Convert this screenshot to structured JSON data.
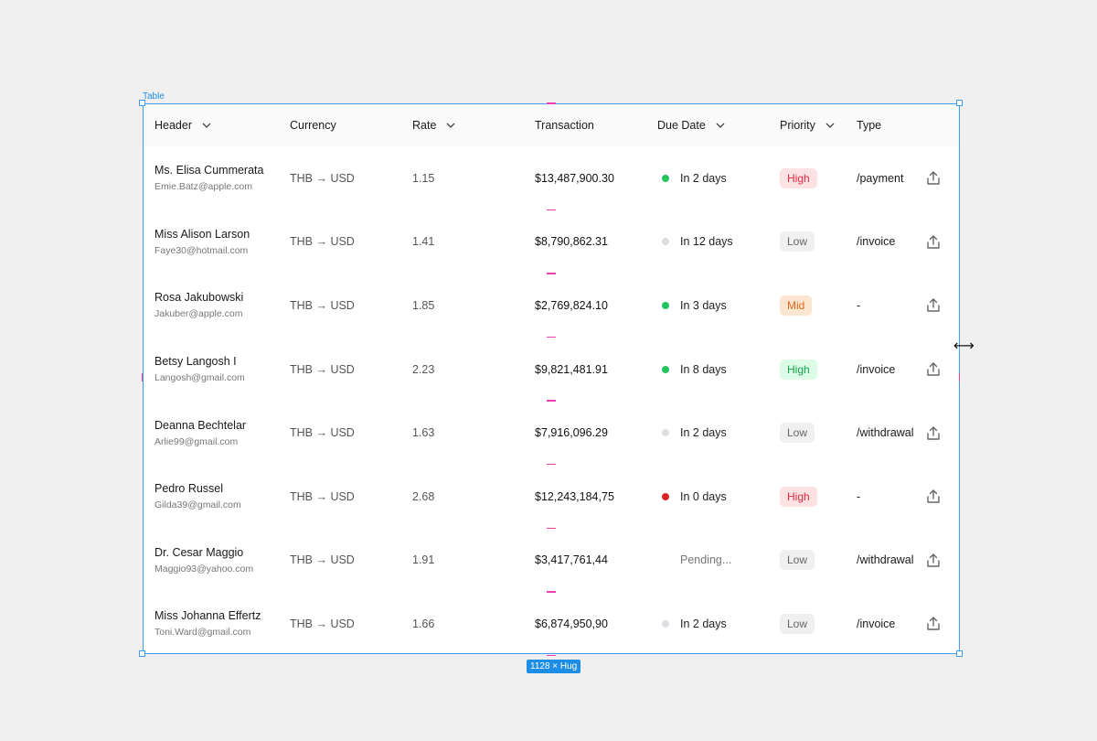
{
  "frame": {
    "label": "Table",
    "size_badge": "1128 × Hug"
  },
  "colors": {
    "selection": "#3d9ef0",
    "divider": "#ec3fb0",
    "dot_green": "#22c55e",
    "dot_gray": "#dddde3",
    "dot_red": "#dc2626"
  },
  "columns": {
    "header": "Header",
    "currency": "Currency",
    "rate": "Rate",
    "transaction": "Transaction",
    "due_date": "Due Date",
    "priority": "Priority",
    "type": "Type"
  },
  "rows": [
    {
      "name": "Ms. Elisa Cummerata",
      "email": "Emie.Batz@apple.com",
      "currency": "THB → USD",
      "rate": "1.15",
      "amount": "$13,487,900.30",
      "due": "In 2 days",
      "status": "green",
      "priority": "High",
      "priority_style": "high-red",
      "type": "/payment"
    },
    {
      "name": "Miss Alison Larson",
      "email": "Faye30@hotmail.com",
      "currency": "THB → USD",
      "rate": "1.41",
      "amount": "$8,790,862.31",
      "due": "In 12 days",
      "status": "gray",
      "priority": "Low",
      "priority_style": "low",
      "type": "/invoice"
    },
    {
      "name": "Rosa Jakubowski",
      "email": "Jakuber@apple.com",
      "currency": "THB → USD",
      "rate": "1.85",
      "amount": "$2,769,824.10",
      "due": "In 3 days",
      "status": "green",
      "priority": "Mid",
      "priority_style": "mid",
      "type": "-"
    },
    {
      "name": "Betsy Langosh I",
      "email": "Langosh@gmail.com",
      "currency": "THB → USD",
      "rate": "2.23",
      "amount": "$9,821,481.91",
      "due": "In 8 days",
      "status": "green",
      "priority": "High",
      "priority_style": "high-green",
      "type": "/invoice"
    },
    {
      "name": "Deanna Bechtelar",
      "email": "Arlie99@gmail.com",
      "currency": "THB → USD",
      "rate": "1.63",
      "amount": "$7,916,096.29",
      "due": "In 2 days",
      "status": "gray",
      "priority": "Low",
      "priority_style": "low",
      "type": "/withdrawal"
    },
    {
      "name": "Pedro Russel",
      "email": "Gilda39@gmail.com",
      "currency": "THB → USD",
      "rate": "2.68",
      "amount": "$12,243,184,75",
      "due": "In 0 days",
      "status": "red",
      "priority": "High",
      "priority_style": "high-red",
      "type": "-"
    },
    {
      "name": "Dr. Cesar Maggio",
      "email": "Maggio93@yahoo.com",
      "currency": "THB → USD",
      "rate": "1.91",
      "amount": "$3,417,761,44",
      "due": "Pending...",
      "status": "none",
      "priority": "Low",
      "priority_style": "low",
      "type": "/withdrawal"
    },
    {
      "name": "Miss Johanna Effertz",
      "email": "Toni.Ward@gmail.com",
      "currency": "THB → USD",
      "rate": "1.66",
      "amount": "$6,874,950,90",
      "due": "In 2 days",
      "status": "gray",
      "priority": "Low",
      "priority_style": "low",
      "type": "/invoice"
    }
  ]
}
